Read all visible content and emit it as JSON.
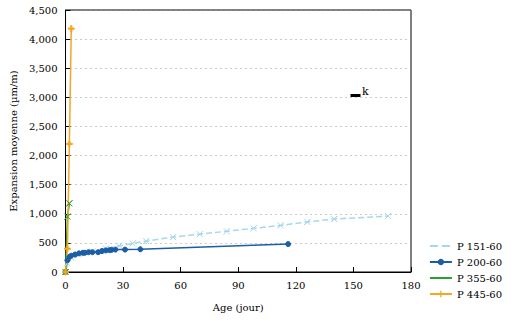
{
  "chart_data": {
    "type": "line",
    "x_label": "Age (jour)",
    "y_label": "Expansion moyenne (µm/m)",
    "xlim": [
      0,
      180
    ],
    "xticks": [
      0,
      30,
      60,
      90,
      120,
      150,
      180
    ],
    "ylim": [
      0,
      4500
    ],
    "yticks": [
      0,
      500,
      1000,
      1500,
      2000,
      2500,
      3000,
      3500,
      4000,
      4500
    ],
    "grid": true,
    "legend": "right",
    "annotations": [
      {
        "text": "k"
      }
    ],
    "series": [
      {
        "name": "P 151-60",
        "color": "#a6d8ec",
        "marker": "x",
        "line_style": "dashed",
        "x": [
          0,
          1,
          3,
          7,
          14,
          21,
          28,
          35,
          42,
          56,
          70,
          84,
          98,
          112,
          126,
          140,
          168
        ],
        "values": [
          0,
          150,
          250,
          300,
          350,
          400,
          450,
          490,
          530,
          600,
          650,
          700,
          750,
          800,
          860,
          910,
          960
        ]
      },
      {
        "name": "P 200-60",
        "color": "#1b5ea6",
        "marker": "circle",
        "line_style": "solid",
        "x": [
          0,
          1,
          2,
          3,
          5,
          7,
          9,
          10,
          12,
          14,
          17,
          19,
          21,
          23,
          24,
          26,
          31,
          39,
          116
        ],
        "values": [
          0,
          200,
          260,
          280,
          300,
          320,
          330,
          330,
          340,
          340,
          340,
          360,
          370,
          375,
          380,
          385,
          385,
          390,
          480
        ]
      },
      {
        "name": "P 355-60",
        "color": "#2ca02c",
        "marker": "x",
        "line_style": "solid",
        "x": [
          0,
          1,
          2
        ],
        "values": [
          0,
          950,
          1180
        ]
      },
      {
        "name": "P 445-60",
        "color": "#f5a623",
        "marker": "plus",
        "line_style": "solid",
        "x": [
          0,
          1,
          2,
          3
        ],
        "values": [
          0,
          400,
          2200,
          4180
        ]
      }
    ]
  }
}
